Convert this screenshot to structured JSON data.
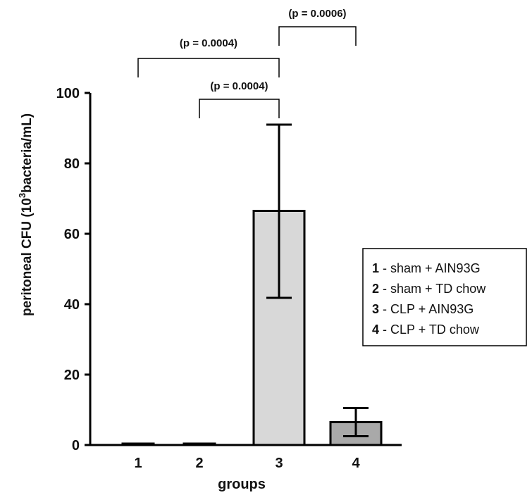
{
  "chart_data": {
    "type": "bar",
    "categories": [
      "1",
      "2",
      "3",
      "4"
    ],
    "values": [
      0.3,
      0.3,
      66.5,
      6.5
    ],
    "error_low": [
      0.3,
      0.3,
      41.8,
      2.5
    ],
    "error_high": [
      0.3,
      0.3,
      91.0,
      10.5
    ],
    "bar_colors": [
      "#d8d8d8",
      "#d8d8d8",
      "#d8d8d8",
      "#a9a9a9"
    ],
    "ylim": [
      0,
      100
    ],
    "yticks": [
      "0",
      "20",
      "40",
      "60",
      "80",
      "100"
    ],
    "xlabel": "groups",
    "ylabel_parts": {
      "before": "peritoneal CFU (10",
      "sup": "3",
      "after": "bacteria/mL)"
    },
    "grid": false,
    "legend_position": "right",
    "legend": [
      {
        "num": "1",
        "sep": "- ",
        "text": "sham + AIN93G"
      },
      {
        "num": "2",
        "sep": "- ",
        "text": "sham + TD chow"
      },
      {
        "num": "3",
        "sep": "- ",
        "text": "CLP + AIN93G"
      },
      {
        "num": "4",
        "sep": "- ",
        "text": "CLP + TD chow"
      }
    ],
    "significance": [
      {
        "from": "1",
        "to": "3",
        "label": "(p = 0.0004)"
      },
      {
        "from": "2",
        "to": "3",
        "label": "(p = 0.0004)"
      },
      {
        "from": "3",
        "to": "4",
        "label": "(p  = 0.0006)"
      }
    ]
  }
}
